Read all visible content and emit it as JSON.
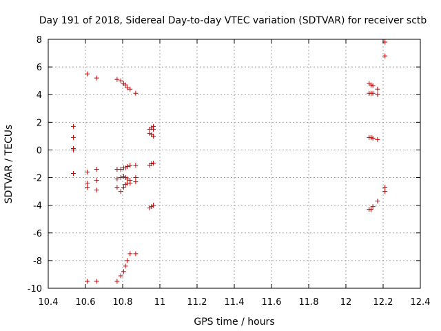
{
  "chart_data": {
    "type": "scatter",
    "title": "Day 191 of 2018, Sidereal Day-to-day VTEC variation (SDTVAR) for receiver sctb",
    "xlabel": "GPS time / hours",
    "ylabel": "SDTVAR / TECUs",
    "xlim": [
      10.4,
      12.4
    ],
    "ylim": [
      -10,
      8
    ],
    "x_ticks": [
      10.4,
      10.6,
      10.8,
      11,
      11.2,
      11.4,
      11.6,
      11.8,
      12,
      12.2,
      12.4
    ],
    "x_tick_labels": [
      "10.4",
      "10.6",
      "10.8",
      "11",
      "11.2",
      "11.4",
      "11.6",
      "11.8",
      "12",
      "12.2",
      "12.4"
    ],
    "y_ticks": [
      -10,
      -8,
      -6,
      -4,
      -2,
      0,
      2,
      4,
      6,
      8
    ],
    "y_tick_labels": [
      "-10",
      "-8",
      "-6",
      "-4",
      "-2",
      "0",
      "2",
      "4",
      "6",
      "8"
    ],
    "grid": true,
    "marker": "+",
    "marker_color": "#cc0000",
    "series": [
      {
        "name": "SDTVAR",
        "points": [
          [
            10.535,
            1.7
          ],
          [
            10.535,
            0.9
          ],
          [
            10.535,
            0.1
          ],
          [
            10.535,
            0.0
          ],
          [
            10.535,
            -1.7
          ],
          [
            10.61,
            5.5
          ],
          [
            10.61,
            -1.6
          ],
          [
            10.61,
            -2.4
          ],
          [
            10.61,
            -2.7
          ],
          [
            10.61,
            -9.5
          ],
          [
            10.66,
            5.2
          ],
          [
            10.66,
            -1.4
          ],
          [
            10.66,
            -2.2
          ],
          [
            10.66,
            -2.9
          ],
          [
            10.66,
            -9.5
          ],
          [
            10.77,
            5.1
          ],
          [
            10.77,
            -1.4
          ],
          [
            10.77,
            -2.1
          ],
          [
            10.77,
            -2.7
          ],
          [
            10.77,
            -9.5
          ],
          [
            10.79,
            5.0
          ],
          [
            10.79,
            -1.4
          ],
          [
            10.79,
            -2.0
          ],
          [
            10.79,
            -3.0
          ],
          [
            10.79,
            -9.1
          ],
          [
            10.805,
            4.8
          ],
          [
            10.805,
            -1.3
          ],
          [
            10.805,
            -1.9
          ],
          [
            10.805,
            -2.7
          ],
          [
            10.805,
            -8.8
          ],
          [
            10.815,
            4.7
          ],
          [
            10.815,
            -1.3
          ],
          [
            10.815,
            -2.0
          ],
          [
            10.815,
            -2.5
          ],
          [
            10.815,
            -8.4
          ],
          [
            10.825,
            4.5
          ],
          [
            10.825,
            -1.2
          ],
          [
            10.825,
            -2.1
          ],
          [
            10.825,
            -2.4
          ],
          [
            10.825,
            -8.0
          ],
          [
            10.84,
            4.4
          ],
          [
            10.84,
            -1.1
          ],
          [
            10.84,
            -2.2
          ],
          [
            10.84,
            -2.4
          ],
          [
            10.84,
            -7.5
          ],
          [
            10.87,
            4.1
          ],
          [
            10.87,
            -1.1
          ],
          [
            10.87,
            -2.0
          ],
          [
            10.87,
            -2.3
          ],
          [
            10.87,
            -7.5
          ],
          [
            10.945,
            1.5
          ],
          [
            10.945,
            1.2
          ],
          [
            10.945,
            -1.1
          ],
          [
            10.945,
            -4.2
          ],
          [
            10.955,
            1.6
          ],
          [
            10.955,
            1.1
          ],
          [
            10.955,
            -1.0
          ],
          [
            10.955,
            -4.1
          ],
          [
            10.965,
            1.7
          ],
          [
            10.965,
            1.5
          ],
          [
            10.965,
            1.0
          ],
          [
            10.965,
            -0.95
          ],
          [
            10.965,
            -4.0
          ],
          [
            12.125,
            4.8
          ],
          [
            12.125,
            4.1
          ],
          [
            12.125,
            0.9
          ],
          [
            12.125,
            -4.3
          ],
          [
            12.135,
            4.7
          ],
          [
            12.135,
            4.1
          ],
          [
            12.135,
            0.9
          ],
          [
            12.135,
            -4.3
          ],
          [
            12.145,
            4.65
          ],
          [
            12.145,
            4.1
          ],
          [
            12.145,
            0.85
          ],
          [
            12.145,
            -4.1
          ],
          [
            12.17,
            4.4
          ],
          [
            12.17,
            4.0
          ],
          [
            12.17,
            0.75
          ],
          [
            12.17,
            -3.7
          ],
          [
            12.21,
            7.8
          ],
          [
            12.21,
            6.8
          ],
          [
            12.21,
            -2.7
          ],
          [
            12.21,
            -3.0
          ]
        ]
      }
    ]
  }
}
